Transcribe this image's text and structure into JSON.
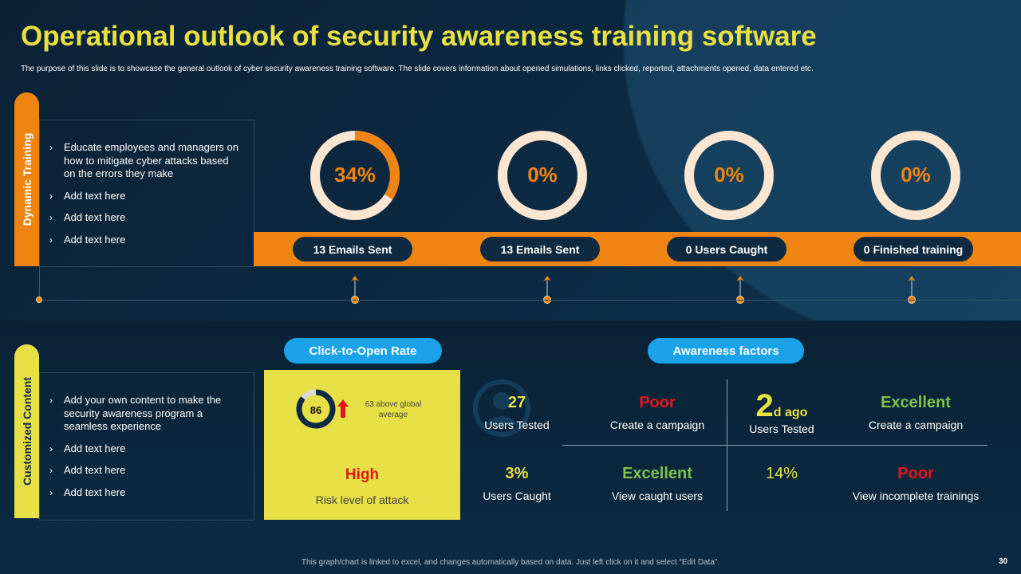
{
  "title": "Operational outlook of security awareness training software",
  "subtitle": "The purpose of this slide is to showcase the general outlook of cyber security awareness training software. The slide covers information about opened simulations, links clicked, reported, attachments opened, data entered etc.",
  "colors": {
    "accent_orange": "#ef8412",
    "accent_yellow": "#e8e043",
    "accent_blue": "#1aa3e8",
    "good": "#7fc24a",
    "bad": "#e0161b"
  },
  "dynamic_training": {
    "tab_label": "Dynamic Training",
    "bullets": [
      "Educate employees and managers on how to mitigate cyber attacks based on the errors they make",
      "Add text here",
      "Add text here",
      "Add text here"
    ]
  },
  "metrics": [
    {
      "percent": 34,
      "label": "34%",
      "pill": "13 Emails Sent"
    },
    {
      "percent": 0,
      "label": "0%",
      "pill": "13 Emails Sent"
    },
    {
      "percent": 0,
      "label": "0%",
      "pill": "0 Users Caught"
    },
    {
      "percent": 0,
      "label": "0%",
      "pill": "0 Finished training"
    }
  ],
  "customized_content": {
    "tab_label": "Customized Content",
    "bullets": [
      "Add your own content to make the security awareness program a seamless experience",
      "Add text here",
      "Add text here",
      "Add text here"
    ]
  },
  "click_to_open": {
    "heading": "Click-to-Open Rate",
    "score": "86",
    "score_value": 86,
    "trend_icon": "arrow-up-icon",
    "comparison": "63 above global average",
    "risk_value": "High",
    "risk_label": "Risk level of attack"
  },
  "awareness": {
    "heading": "Awareness factors",
    "cells": [
      {
        "value": "27",
        "label": "Users Tested",
        "tone": "yel"
      },
      {
        "value": "Poor",
        "label": "Create a campaign",
        "tone": "red"
      },
      {
        "value": "2",
        "value_suffix": "d ago",
        "label": "Users Tested",
        "tone": "yel"
      },
      {
        "value": "Excellent",
        "label": "Create a campaign",
        "tone": "grn"
      },
      {
        "value": "3%",
        "label": "Users Caught",
        "tone": "yel"
      },
      {
        "value": "Excellent",
        "label": "View caught users",
        "tone": "grn"
      },
      {
        "value": "14%",
        "label": "",
        "tone": "yel"
      },
      {
        "value": "Poor",
        "label": "View incomplete trainings",
        "tone": "red"
      }
    ]
  },
  "footer": "This graph/chart is linked to excel,  and changes automatically based on data. Just left click on it and select “Edit Data”.",
  "page_number": "30"
}
